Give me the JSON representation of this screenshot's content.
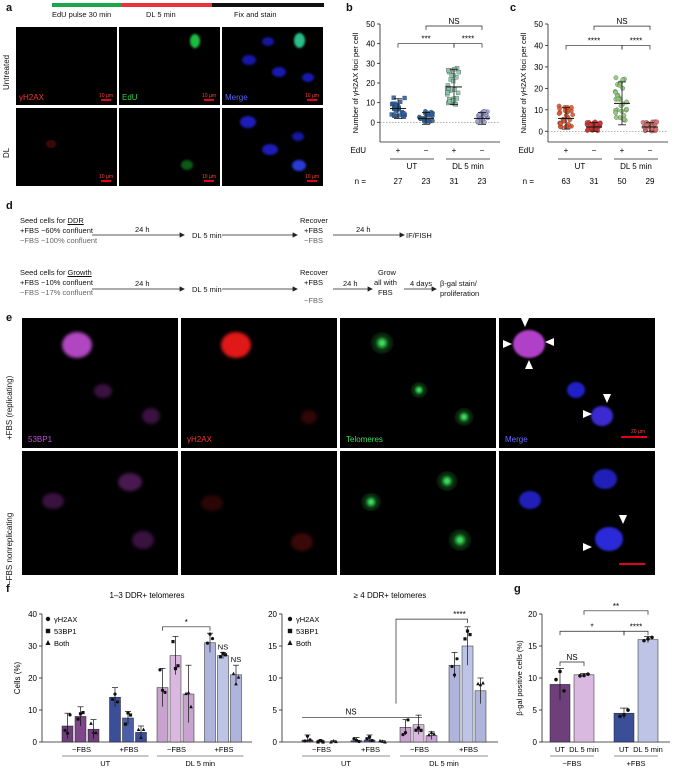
{
  "panel_labels": {
    "a": "a",
    "b": "b",
    "c": "c",
    "d": "d",
    "e": "e",
    "f": "f",
    "g": "g"
  },
  "panel_a": {
    "timeline": [
      "EdU pulse 30 min",
      "DL 5 min",
      "Fix and stain"
    ],
    "timeline_colors": [
      "#1aa64a",
      "#e8323c",
      "#111111"
    ],
    "rows": [
      "Untreated",
      "DL"
    ],
    "channels": [
      "γH2AX",
      "EdU",
      "Merge"
    ],
    "scale_bar": "10 µm"
  },
  "panel_d": {
    "row1": {
      "step1_a": "Seed cells for ",
      "step1_u": "DDR",
      "fbs_plus": "+FBS ~60% confluent",
      "fbs_minus": "−FBS ~100% confluent",
      "t1": "24 h",
      "dl": "DL 5 min",
      "recover": "Recover",
      "rec_plus": "+FBS",
      "rec_minus": "−FBS",
      "t2": "24 h",
      "end": "IF/FISH"
    },
    "row2": {
      "step1_a": "Seed cells for ",
      "step1_u": "Growth",
      "fbs_plus": "+FBS ~10% confluent",
      "fbs_minus": "−FBS ~17% confluent",
      "t1": "24 h",
      "dl": "DL 5 min",
      "recover": "Recover",
      "rec_plus": "+FBS",
      "rec_minus": "−FBS",
      "t2": "24 h",
      "grow1": "Grow",
      "grow2": "all with",
      "grow3": "FBS",
      "t3": "4 days",
      "end1": "β-gal stain/",
      "end2": "proliferation"
    }
  },
  "panel_e": {
    "rows": [
      "+FBS (replicating)",
      "−FBS nonreplicating"
    ],
    "channels": [
      "53BP1",
      "γH2AX",
      "Telomeres",
      "Merge"
    ],
    "scale_bar": "20 µm"
  },
  "chart_data": [
    {
      "panel": "b",
      "type": "scatter",
      "ylabel": "Number of γH2AX foci per cell",
      "ylim": [
        -10,
        50
      ],
      "yticks": [
        0,
        10,
        20,
        30,
        40,
        50
      ],
      "row_label_edu": "EdU",
      "edu": [
        "+",
        "−",
        "+",
        "−"
      ],
      "groups": [
        "UT",
        "DL 5 min"
      ],
      "n_label": "n =",
      "n": [
        27,
        23,
        31,
        23
      ],
      "means": [
        7,
        2,
        18,
        2
      ],
      "sd": [
        5,
        3,
        9,
        3
      ],
      "colors": [
        "#2e5f9a",
        "#2e5f9a",
        "#8fc5a5",
        "#9fa3d6"
      ],
      "significance": [
        {
          "label": "***",
          "from": 0,
          "to": 2
        },
        {
          "label": "****",
          "from": 2,
          "to": 3
        },
        {
          "label": "NS",
          "from": 1,
          "to": 3
        }
      ]
    },
    {
      "panel": "c",
      "type": "scatter",
      "ylabel": "Number of γH2AX foci per cell",
      "ylim": [
        -5,
        50
      ],
      "yticks": [
        0,
        10,
        20,
        30,
        40,
        50
      ],
      "row_label_edu": "EdU",
      "edu": [
        "+",
        "−",
        "+",
        "−"
      ],
      "groups": [
        "UT",
        "DL 5 min"
      ],
      "n_label": "n =",
      "n": [
        63,
        31,
        50,
        29
      ],
      "means": [
        6,
        2,
        13,
        2
      ],
      "sd": [
        5,
        2,
        10,
        2
      ],
      "colors": [
        "#e0562e",
        "#d83030",
        "#8fc97a",
        "#e07070"
      ],
      "significance": [
        {
          "label": "****",
          "from": 0,
          "to": 2
        },
        {
          "label": "****",
          "from": 2,
          "to": 3
        },
        {
          "label": "NS",
          "from": 1,
          "to": 3
        }
      ]
    },
    {
      "panel": "f-left",
      "type": "bar",
      "title": "1–3 DDR+ telomeres",
      "ylabel": "Cells (%)",
      "ylim": [
        0,
        40
      ],
      "yticks": [
        0,
        10,
        20,
        30,
        40
      ],
      "categories": [
        "−FBS",
        "+FBS",
        "−FBS",
        "+FBS"
      ],
      "groups": [
        "UT",
        "DL 5 min"
      ],
      "series": [
        {
          "name": "γH2AX",
          "values": [
            5,
            14,
            17,
            31
          ],
          "sd": [
            4,
            3,
            6,
            3
          ],
          "colors": [
            "#6e3f7a",
            "#3a4f98",
            "#c9a3d0",
            "#aeb4dc"
          ]
        },
        {
          "name": "53BP1",
          "values": [
            8,
            7.5,
            27,
            27
          ],
          "sd": [
            3,
            2,
            6,
            1
          ],
          "colors": [
            "#80468c",
            "#4a5fa8",
            "#d9b9df",
            "#bec4e6"
          ]
        },
        {
          "name": "Both",
          "values": [
            4,
            3,
            15,
            21
          ],
          "sd": [
            3,
            2,
            9,
            3
          ],
          "colors": [
            "#6e3f7a",
            "#3a4f98",
            "#c9a3d0",
            "#aeb4dc"
          ]
        }
      ],
      "significance": [
        {
          "label": "*",
          "from": 2,
          "to": 3
        },
        {
          "label": "NS",
          "bar": [
            3,
            1
          ]
        },
        {
          "label": "NS",
          "bar": [
            3,
            2
          ]
        }
      ]
    },
    {
      "panel": "f-right",
      "type": "bar",
      "title": "≥ 4 DDR+ telomeres",
      "ylabel": "",
      "ylim": [
        0,
        20
      ],
      "yticks": [
        0,
        5,
        10,
        15,
        20
      ],
      "categories": [
        "−FBS",
        "+FBS",
        "−FBS",
        "+FBS"
      ],
      "groups": [
        "UT",
        "DL 5 min"
      ],
      "series": [
        {
          "name": "γH2AX",
          "values": [
            0.3,
            0.2,
            2.3,
            12
          ],
          "sd": [
            0.8,
            0.5,
            1.2,
            2
          ],
          "colors": [
            "#6e3f7a",
            "#3a4f98",
            "#c9a3d0",
            "#aeb4dc"
          ]
        },
        {
          "name": "53BP1",
          "values": [
            0,
            0.3,
            2.7,
            15
          ],
          "sd": [
            0.3,
            0.8,
            1.5,
            3
          ],
          "colors": [
            "#80468c",
            "#4a5fa8",
            "#d9b9df",
            "#bec4e6"
          ]
        },
        {
          "name": "Both",
          "values": [
            0,
            0,
            1,
            8
          ],
          "sd": [
            0.2,
            0.2,
            0.6,
            2
          ],
          "colors": [
            "#6e3f7a",
            "#3a4f98",
            "#c9a3d0",
            "#aeb4dc"
          ]
        }
      ],
      "significance": [
        {
          "label": "****",
          "from": 2,
          "to": 3
        },
        {
          "label": "NS",
          "from": 0,
          "to": 2
        }
      ]
    },
    {
      "panel": "g",
      "type": "bar",
      "ylabel": "β-gal positive cells (%)",
      "ylim": [
        0,
        20
      ],
      "yticks": [
        0,
        5,
        10,
        15,
        20
      ],
      "categories": [
        "UT",
        "DL 5 min",
        "UT",
        "DL 5 min"
      ],
      "groups": [
        "−FBS",
        "+FBS"
      ],
      "values": [
        9,
        10.5,
        4.5,
        16
      ],
      "sd": [
        2.5,
        0.2,
        0.8,
        0.5
      ],
      "colors": [
        "#6e3f7a",
        "#d9b9df",
        "#3a4f98",
        "#bec4e6"
      ],
      "significance": [
        {
          "label": "NS",
          "from": 0,
          "to": 1
        },
        {
          "label": "*",
          "from": 0,
          "to": 2
        },
        {
          "label": "****",
          "from": 2,
          "to": 3
        },
        {
          "label": "**",
          "from": 1,
          "to": 3
        }
      ]
    }
  ]
}
